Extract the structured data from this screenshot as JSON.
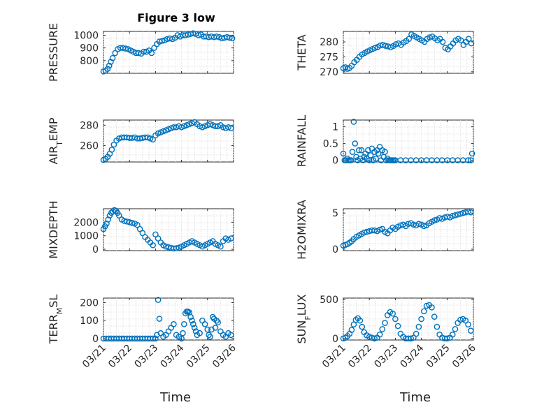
{
  "figure_title": "Figure 3 low",
  "colors": {
    "marker": "#0072BD",
    "axes": "#262626"
  },
  "chart_data": [
    {
      "type": "scatter",
      "marker": "o",
      "ylabel": "PRESSURE",
      "xlabel": "",
      "xticks": [
        "03/21",
        "03/22",
        "03/23",
        "03/24",
        "03/25",
        "03/26"
      ],
      "xlim": [
        0,
        5
      ],
      "ylim": [
        700,
        1030
      ],
      "yticks": [
        800,
        900,
        1000
      ],
      "ytick_labels": [
        "800",
        "900",
        "1000"
      ],
      "x": [
        0.0,
        0.08,
        0.16,
        0.22,
        0.28,
        0.35,
        0.45,
        0.55,
        0.65,
        0.75,
        0.85,
        0.95,
        1.05,
        1.15,
        1.25,
        1.35,
        1.45,
        1.55,
        1.65,
        1.75,
        1.85,
        1.95,
        2.05,
        2.15,
        2.25,
        2.35,
        2.45,
        2.55,
        2.65,
        2.75,
        2.85,
        2.95,
        3.05,
        3.15,
        3.25,
        3.35,
        3.45,
        3.55,
        3.65,
        3.75,
        3.85,
        3.95,
        4.05,
        4.15,
        4.25,
        4.35,
        4.45,
        4.55,
        4.65,
        4.75,
        4.85,
        4.95
      ],
      "y": [
        715,
        720,
        735,
        760,
        790,
        820,
        860,
        890,
        900,
        900,
        895,
        890,
        880,
        870,
        860,
        860,
        855,
        870,
        870,
        880,
        860,
        900,
        930,
        950,
        955,
        960,
        970,
        975,
        970,
        980,
        1000,
        990,
        1000,
        1000,
        1005,
        1010,
        1015,
        1010,
        1000,
        1005,
        990,
        990,
        985,
        990,
        985,
        990,
        985,
        975,
        980,
        985,
        980,
        975
      ]
    },
    {
      "type": "scatter",
      "marker": "o",
      "ylabel": "THETA",
      "xticks": [
        "03/21",
        "03/22",
        "03/23",
        "03/24",
        "03/25",
        "03/26"
      ],
      "xlim": [
        0,
        5
      ],
      "ylim": [
        269.5,
        283.5
      ],
      "yticks": [
        270,
        275,
        280
      ],
      "ytick_labels": [
        "270",
        "275",
        "280"
      ],
      "x": [
        0.0,
        0.08,
        0.16,
        0.24,
        0.32,
        0.42,
        0.52,
        0.62,
        0.72,
        0.82,
        0.92,
        1.02,
        1.12,
        1.22,
        1.32,
        1.42,
        1.52,
        1.62,
        1.72,
        1.82,
        1.92,
        2.02,
        2.12,
        2.22,
        2.32,
        2.42,
        2.52,
        2.62,
        2.72,
        2.82,
        2.92,
        3.02,
        3.12,
        3.22,
        3.32,
        3.42,
        3.52,
        3.62,
        3.72,
        3.82,
        3.92,
        4.02,
        4.12,
        4.22,
        4.32,
        4.42,
        4.52,
        4.62,
        4.72,
        4.82,
        4.92
      ],
      "y": [
        271.2,
        271.5,
        271.0,
        271.3,
        272.0,
        273.2,
        274.0,
        275.0,
        275.8,
        276.3,
        276.8,
        277.2,
        277.6,
        278.0,
        278.3,
        278.8,
        279.0,
        278.7,
        278.5,
        278.2,
        278.6,
        279.2,
        279.5,
        279.0,
        279.8,
        280.3,
        281.0,
        282.5,
        282.0,
        281.5,
        281.0,
        280.5,
        280.0,
        281.0,
        281.5,
        281.8,
        281.2,
        280.5,
        281.0,
        280.0,
        278.0,
        277.5,
        278.5,
        279.5,
        280.5,
        281.0,
        280.5,
        279.0,
        280.0,
        281.0,
        279.5
      ]
    },
    {
      "type": "scatter",
      "marker": "o",
      "ylabel": "AIR_TEMP",
      "xticks": [
        "03/21",
        "03/22",
        "03/23",
        "03/24",
        "03/25",
        "03/26"
      ],
      "xlim": [
        0,
        5
      ],
      "ylim": [
        244,
        285
      ],
      "yticks": [
        260,
        280
      ],
      "ytick_labels": [
        "260",
        "280"
      ],
      "x": [
        0.0,
        0.08,
        0.16,
        0.24,
        0.32,
        0.4,
        0.5,
        0.6,
        0.7,
        0.8,
        0.9,
        1.0,
        1.1,
        1.2,
        1.3,
        1.4,
        1.5,
        1.6,
        1.7,
        1.8,
        1.9,
        2.0,
        2.1,
        2.2,
        2.3,
        2.4,
        2.5,
        2.6,
        2.7,
        2.8,
        2.9,
        3.0,
        3.1,
        3.2,
        3.3,
        3.4,
        3.5,
        3.6,
        3.7,
        3.8,
        3.9,
        4.0,
        4.1,
        4.2,
        4.3,
        4.4,
        4.5,
        4.6,
        4.7,
        4.8,
        4.9
      ],
      "y": [
        246,
        247,
        249,
        252,
        256,
        261,
        265,
        267,
        268,
        268,
        268,
        267.5,
        267.5,
        268,
        267,
        267,
        267.5,
        268,
        268,
        267,
        266,
        270,
        272,
        273,
        274,
        275,
        276,
        277,
        278,
        278,
        279,
        278,
        279,
        280,
        281,
        282,
        283,
        281,
        279,
        278,
        279,
        280,
        281,
        280,
        279,
        279,
        280,
        278,
        277,
        278,
        277
      ]
    },
    {
      "type": "scatter",
      "marker": "o",
      "ylabel": "RAINFALL",
      "xticks": [
        "03/21",
        "03/22",
        "03/23",
        "03/24",
        "03/25",
        "03/26"
      ],
      "xlim": [
        0,
        5
      ],
      "ylim": [
        -0.05,
        1.2
      ],
      "yticks": [
        0,
        0.5,
        1
      ],
      "ytick_labels": [
        "0",
        "0.5",
        "1"
      ],
      "x": [
        0.0,
        0.05,
        0.1,
        0.15,
        0.2,
        0.25,
        0.3,
        0.35,
        0.4,
        0.45,
        0.5,
        0.55,
        0.6,
        0.65,
        0.7,
        0.75,
        0.8,
        0.85,
        0.9,
        0.95,
        1.0,
        1.05,
        1.1,
        1.15,
        1.2,
        1.25,
        1.3,
        1.35,
        1.4,
        1.45,
        1.5,
        1.55,
        1.6,
        1.65,
        1.7,
        1.75,
        1.8,
        1.85,
        1.9,
        1.95,
        2.0,
        2.2,
        2.4,
        2.6,
        2.8,
        3.0,
        3.2,
        3.4,
        3.6,
        3.8,
        4.0,
        4.2,
        4.4,
        4.6,
        4.8,
        4.9,
        4.95
      ],
      "y": [
        0.2,
        0,
        0,
        0.05,
        0,
        0,
        0,
        0.25,
        1.15,
        0.5,
        0.1,
        0,
        0.3,
        0.05,
        0.3,
        0,
        0.1,
        0.2,
        0.05,
        0.3,
        0,
        0.15,
        0.35,
        0,
        0.25,
        0.05,
        0.3,
        0.2,
        0.4,
        0,
        0.3,
        0.1,
        0.25,
        0,
        0.05,
        0,
        0,
        0,
        0,
        0,
        0,
        0,
        0,
        0,
        0,
        0,
        0,
        0,
        0,
        0,
        0,
        0,
        0,
        0,
        0,
        0,
        0.2
      ]
    },
    {
      "type": "scatter",
      "marker": "o",
      "ylabel": "MIXDEPTH",
      "xticks": [
        "03/21",
        "03/22",
        "03/23",
        "03/24",
        "03/25",
        "03/26"
      ],
      "xlim": [
        0,
        5
      ],
      "ylim": [
        -100,
        3000
      ],
      "yticks": [
        0,
        1000,
        2000
      ],
      "ytick_labels": [
        "0",
        "1000",
        "2000"
      ],
      "x": [
        0.0,
        0.06,
        0.12,
        0.18,
        0.24,
        0.3,
        0.36,
        0.42,
        0.48,
        0.54,
        0.6,
        0.7,
        0.8,
        0.9,
        1.0,
        1.1,
        1.2,
        1.3,
        1.4,
        1.5,
        1.6,
        1.7,
        1.8,
        1.9,
        2.0,
        2.1,
        2.2,
        2.3,
        2.4,
        2.5,
        2.6,
        2.7,
        2.8,
        2.9,
        3.0,
        3.1,
        3.2,
        3.3,
        3.4,
        3.5,
        3.6,
        3.7,
        3.8,
        3.9,
        4.0,
        4.1,
        4.2,
        4.3,
        4.4,
        4.5,
        4.6,
        4.7,
        4.8,
        4.9
      ],
      "y": [
        1500,
        1700,
        1900,
        2200,
        2500,
        2700,
        2800,
        2900,
        2850,
        2700,
        2500,
        2200,
        2100,
        2050,
        2000,
        1950,
        1900,
        1800,
        1500,
        1200,
        900,
        700,
        500,
        300,
        1100,
        800,
        500,
        300,
        200,
        150,
        100,
        60,
        80,
        120,
        200,
        300,
        400,
        500,
        600,
        500,
        400,
        300,
        200,
        300,
        400,
        500,
        600,
        400,
        300,
        200,
        600,
        800,
        700,
        800
      ]
    },
    {
      "type": "scatter",
      "marker": "o",
      "ylabel": "H2OMIXRA",
      "xticks": [
        "03/21",
        "03/22",
        "03/23",
        "03/24",
        "03/25",
        "03/26"
      ],
      "xlim": [
        0,
        5
      ],
      "ylim": [
        -0.2,
        5.6
      ],
      "yticks": [
        0,
        5
      ],
      "ytick_labels": [
        "0",
        "5"
      ],
      "x": [
        0.0,
        0.08,
        0.16,
        0.24,
        0.32,
        0.4,
        0.5,
        0.6,
        0.7,
        0.8,
        0.9,
        1.0,
        1.1,
        1.2,
        1.3,
        1.4,
        1.5,
        1.6,
        1.7,
        1.8,
        1.9,
        2.0,
        2.1,
        2.2,
        2.3,
        2.4,
        2.5,
        2.6,
        2.7,
        2.8,
        2.9,
        3.0,
        3.1,
        3.2,
        3.3,
        3.4,
        3.5,
        3.6,
        3.7,
        3.8,
        3.9,
        4.0,
        4.1,
        4.2,
        4.3,
        4.4,
        4.5,
        4.6,
        4.7,
        4.8,
        4.9
      ],
      "y": [
        0.5,
        0.6,
        0.7,
        0.9,
        1.1,
        1.4,
        1.7,
        1.9,
        2.1,
        2.3,
        2.4,
        2.5,
        2.6,
        2.6,
        2.5,
        2.7,
        2.8,
        2.4,
        2.2,
        2.6,
        3.0,
        2.8,
        3.1,
        3.3,
        3.4,
        3.2,
        3.5,
        3.6,
        3.4,
        3.3,
        3.5,
        3.4,
        3.2,
        3.3,
        3.6,
        3.8,
        4.0,
        4.1,
        4.3,
        4.2,
        4.4,
        4.5,
        4.4,
        4.6,
        4.7,
        4.8,
        4.9,
        5.0,
        5.1,
        5.2,
        5.1
      ]
    },
    {
      "type": "scatter",
      "marker": "o",
      "ylabel": "TERR_MSL",
      "xticks": [
        "03/21",
        "03/22",
        "03/23",
        "03/24",
        "03/25",
        "03/26"
      ],
      "xlim": [
        0,
        5
      ],
      "ylim": [
        -8,
        225
      ],
      "yticks": [
        0,
        100,
        200
      ],
      "ytick_labels": [
        "0",
        "100",
        "200"
      ],
      "x": [
        0.0,
        0.1,
        0.2,
        0.3,
        0.4,
        0.5,
        0.6,
        0.7,
        0.8,
        0.9,
        1.0,
        1.1,
        1.2,
        1.3,
        1.4,
        1.5,
        1.6,
        1.7,
        1.8,
        1.9,
        2.0,
        2.05,
        2.1,
        2.15,
        2.2,
        2.3,
        2.4,
        2.5,
        2.6,
        2.7,
        2.8,
        2.9,
        3.0,
        3.05,
        3.1,
        3.15,
        3.2,
        3.25,
        3.3,
        3.35,
        3.4,
        3.45,
        3.5,
        3.55,
        3.6,
        3.7,
        3.8,
        3.9,
        4.0,
        4.05,
        4.1,
        4.15,
        4.2,
        4.25,
        4.3,
        4.35,
        4.4,
        4.5,
        4.6,
        4.7,
        4.8,
        4.9
      ],
      "y": [
        0,
        0,
        0,
        0,
        0,
        0,
        0,
        0,
        0,
        0,
        0,
        0,
        0,
        0,
        0,
        0,
        0,
        0,
        0,
        0,
        0,
        20,
        215,
        110,
        30,
        10,
        20,
        40,
        60,
        80,
        20,
        10,
        0,
        30,
        80,
        140,
        150,
        150,
        145,
        120,
        100,
        80,
        60,
        40,
        20,
        30,
        100,
        80,
        50,
        20,
        10,
        50,
        120,
        110,
        60,
        100,
        90,
        40,
        20,
        10,
        30,
        20
      ]
    },
    {
      "type": "scatter",
      "marker": "o",
      "ylabel": "SUN_FLUX",
      "xticks": [
        "03/21",
        "03/22",
        "03/23",
        "03/24",
        "03/25",
        "03/26"
      ],
      "xlim": [
        0,
        5
      ],
      "ylim": [
        -20,
        520
      ],
      "yticks": [
        0,
        500
      ],
      "ytick_labels": [
        "0",
        "500"
      ],
      "x": [
        0.0,
        0.08,
        0.16,
        0.24,
        0.32,
        0.4,
        0.48,
        0.56,
        0.64,
        0.72,
        0.8,
        0.9,
        1.0,
        1.1,
        1.2,
        1.3,
        1.4,
        1.5,
        1.6,
        1.7,
        1.8,
        1.9,
        2.0,
        2.1,
        2.2,
        2.3,
        2.4,
        2.5,
        2.6,
        2.7,
        2.8,
        2.9,
        3.0,
        3.1,
        3.2,
        3.3,
        3.4,
        3.5,
        3.6,
        3.7,
        3.8,
        3.9,
        4.0,
        4.1,
        4.2,
        4.3,
        4.4,
        4.5,
        4.6,
        4.7,
        4.8,
        4.9
      ],
      "y": [
        0,
        10,
        30,
        60,
        110,
        180,
        240,
        260,
        230,
        150,
        80,
        40,
        20,
        10,
        0,
        10,
        50,
        120,
        200,
        300,
        340,
        320,
        250,
        160,
        60,
        20,
        0,
        0,
        0,
        10,
        60,
        150,
        250,
        350,
        420,
        430,
        400,
        280,
        150,
        50,
        10,
        0,
        0,
        10,
        50,
        120,
        200,
        240,
        250,
        230,
        180,
        100
      ]
    }
  ],
  "x_axis_title": "Time"
}
